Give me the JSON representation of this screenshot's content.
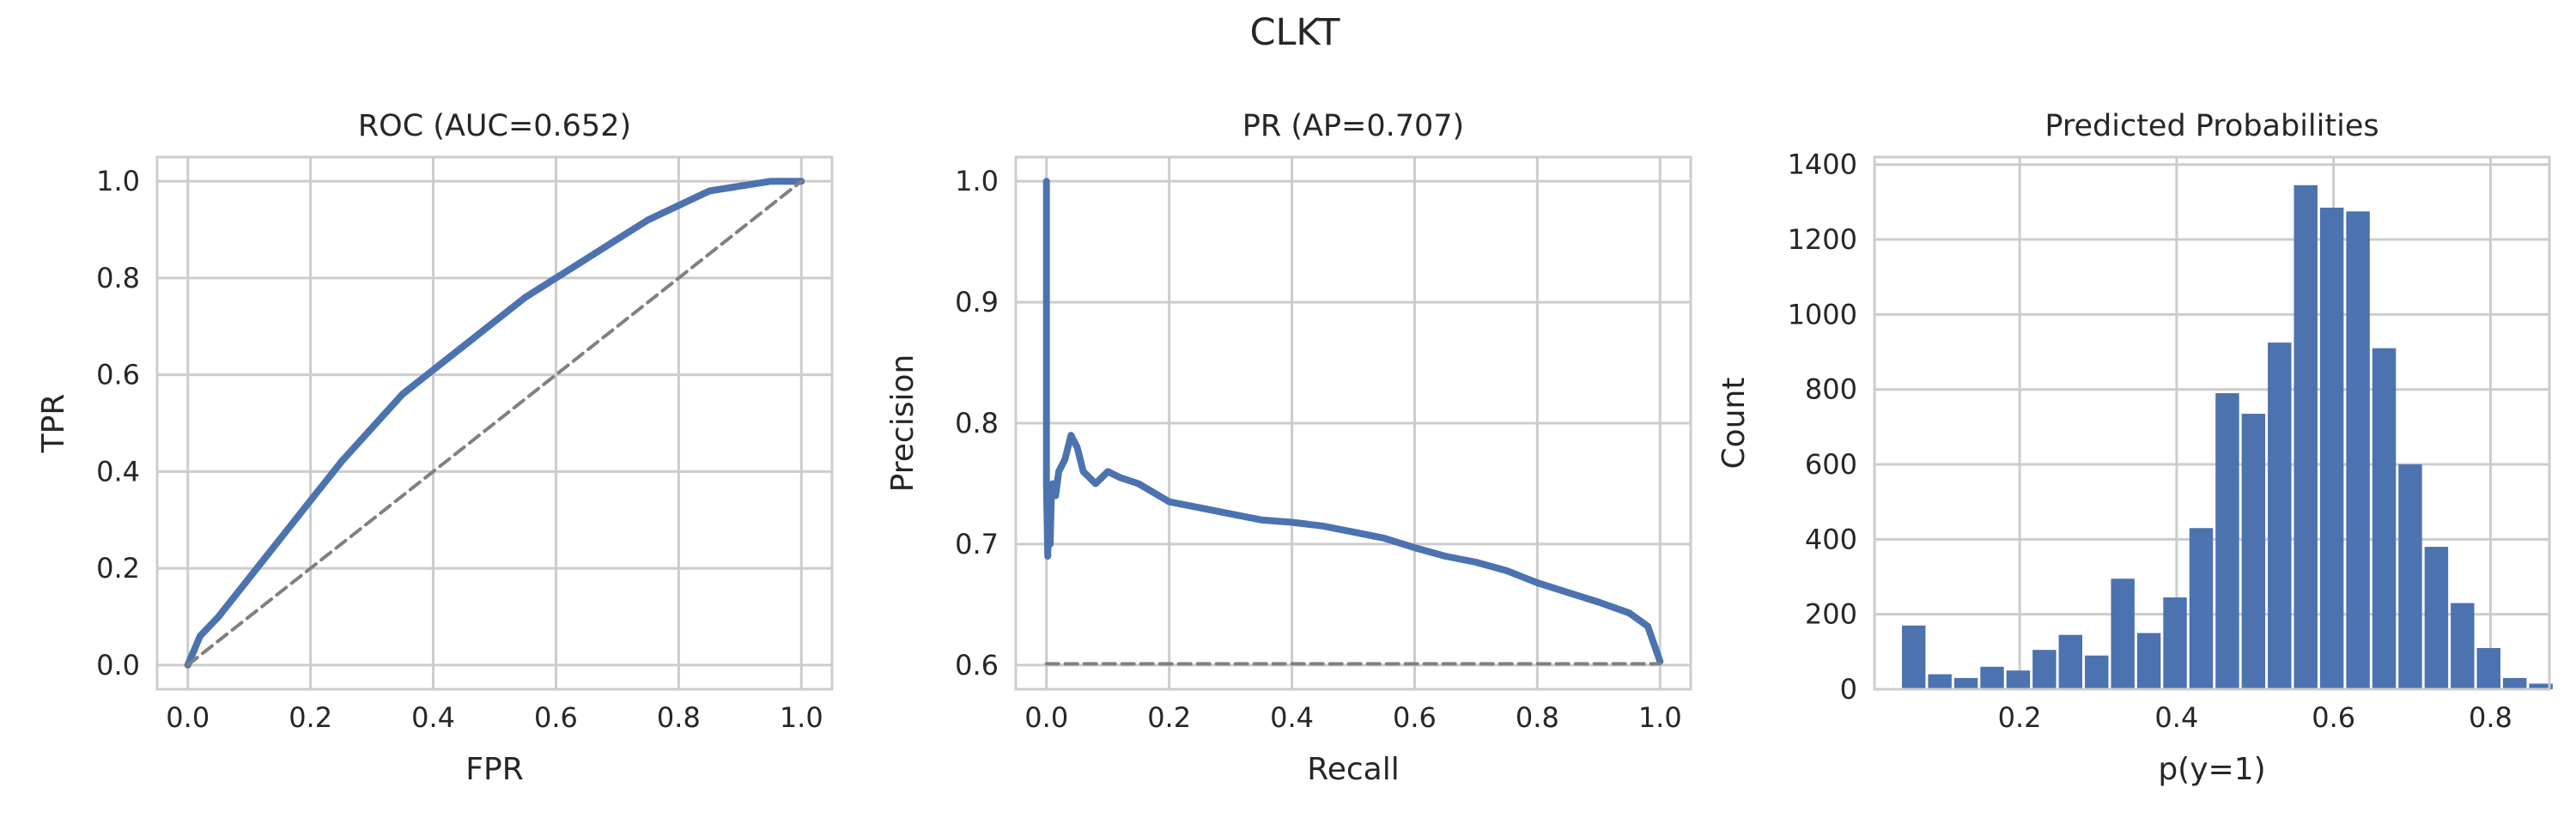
{
  "figure": {
    "suptitle": "CLKT"
  },
  "colors": {
    "series": "#4c72b0",
    "baseline": "#808080",
    "grid": "#cccccc",
    "text": "#262626"
  },
  "chart_data": [
    {
      "type": "line",
      "title": "ROC (AUC=0.652)",
      "xlabel": "FPR",
      "ylabel": "TPR",
      "xlim": [
        -0.05,
        1.05
      ],
      "ylim": [
        -0.05,
        1.05
      ],
      "xticks": [
        0.0,
        0.2,
        0.4,
        0.6,
        0.8,
        1.0
      ],
      "xtick_labels": [
        "0.0",
        "0.2",
        "0.4",
        "0.6",
        "0.8",
        "1.0"
      ],
      "yticks": [
        0.0,
        0.2,
        0.4,
        0.6,
        0.8,
        1.0
      ],
      "ytick_labels": [
        "0.0",
        "0.2",
        "0.4",
        "0.6",
        "0.8",
        "1.0"
      ],
      "grid": true,
      "series": [
        {
          "style": "solid",
          "x": [
            0.0,
            0.01,
            0.02,
            0.05,
            0.1,
            0.15,
            0.2,
            0.25,
            0.3,
            0.35,
            0.4,
            0.45,
            0.5,
            0.55,
            0.6,
            0.65,
            0.7,
            0.75,
            0.8,
            0.85,
            0.9,
            0.95,
            1.0
          ],
          "y": [
            0.0,
            0.03,
            0.06,
            0.1,
            0.18,
            0.26,
            0.34,
            0.42,
            0.49,
            0.56,
            0.61,
            0.66,
            0.71,
            0.76,
            0.8,
            0.84,
            0.88,
            0.92,
            0.95,
            0.98,
            0.99,
            1.0,
            1.0
          ]
        },
        {
          "style": "dashed",
          "x": [
            0.0,
            1.0
          ],
          "y": [
            0.0,
            1.0
          ]
        }
      ]
    },
    {
      "type": "line",
      "title": "PR (AP=0.707)",
      "xlabel": "Recall",
      "ylabel": "Precision",
      "xlim": [
        -0.05,
        1.05
      ],
      "ylim": [
        0.58,
        1.02
      ],
      "xticks": [
        0.0,
        0.2,
        0.4,
        0.6,
        0.8,
        1.0
      ],
      "xtick_labels": [
        "0.0",
        "0.2",
        "0.4",
        "0.6",
        "0.8",
        "1.0"
      ],
      "yticks": [
        0.6,
        0.7,
        0.8,
        0.9,
        1.0
      ],
      "ytick_labels": [
        "0.6",
        "0.7",
        "0.8",
        "0.9",
        "1.0"
      ],
      "grid": true,
      "series": [
        {
          "style": "solid",
          "x": [
            0.0,
            0.0,
            0.0,
            0.002,
            0.004,
            0.006,
            0.008,
            0.01,
            0.015,
            0.02,
            0.03,
            0.04,
            0.05,
            0.06,
            0.08,
            0.1,
            0.12,
            0.15,
            0.2,
            0.25,
            0.3,
            0.35,
            0.4,
            0.45,
            0.5,
            0.55,
            0.6,
            0.65,
            0.7,
            0.75,
            0.8,
            0.85,
            0.9,
            0.95,
            0.98,
            1.0
          ],
          "y": [
            1.0,
            0.86,
            0.75,
            0.69,
            0.73,
            0.7,
            0.74,
            0.75,
            0.74,
            0.76,
            0.77,
            0.79,
            0.78,
            0.76,
            0.75,
            0.76,
            0.755,
            0.75,
            0.735,
            0.73,
            0.725,
            0.72,
            0.718,
            0.715,
            0.71,
            0.705,
            0.697,
            0.69,
            0.685,
            0.678,
            0.668,
            0.66,
            0.652,
            0.643,
            0.632,
            0.603
          ]
        },
        {
          "style": "dashed",
          "x": [
            0.0,
            1.0
          ],
          "y": [
            0.601,
            0.601
          ]
        }
      ]
    },
    {
      "type": "bar",
      "title": "Predicted Probabilities",
      "xlabel": "p(y=1)",
      "ylabel": "Count",
      "xlim": [
        0.015,
        0.875
      ],
      "ylim": [
        0,
        1420
      ],
      "xticks": [
        0.2,
        0.4,
        0.6,
        0.8
      ],
      "xtick_labels": [
        "0.2",
        "0.4",
        "0.6",
        "0.8"
      ],
      "yticks": [
        0,
        200,
        400,
        600,
        800,
        1000,
        1200,
        1400
      ],
      "ytick_labels": [
        "0",
        "200",
        "400",
        "600",
        "800",
        "1000",
        "1200",
        "1400"
      ],
      "grid": true,
      "bin_start": 0.05,
      "bin_width": 0.0333,
      "values": [
        170,
        40,
        30,
        60,
        50,
        105,
        145,
        90,
        295,
        150,
        245,
        430,
        790,
        735,
        925,
        1345,
        1285,
        1275,
        910,
        600,
        380,
        230,
        110,
        30,
        15
      ]
    }
  ]
}
